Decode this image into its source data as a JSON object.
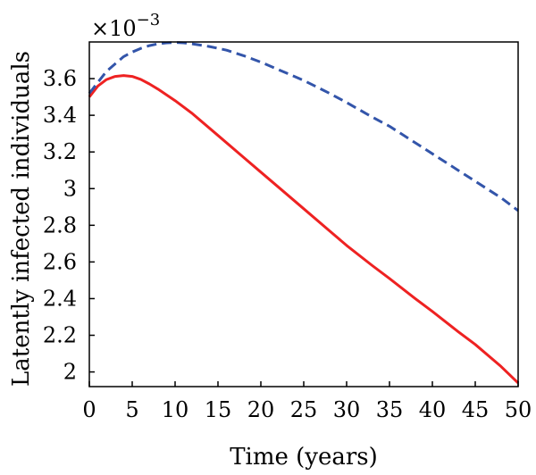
{
  "chart_data": {
    "type": "line",
    "xlabel": "Time (years)",
    "ylabel": "Latently infected individuals",
    "y_multiplier_label": "×10",
    "y_multiplier_exponent": "−3",
    "xlim": [
      0,
      50
    ],
    "ylim": [
      1.92,
      3.8
    ],
    "x_ticks": [
      0,
      5,
      10,
      15,
      20,
      25,
      30,
      35,
      40,
      45,
      50
    ],
    "x_tick_labels": [
      "0",
      "5",
      "10",
      "15",
      "20",
      "25",
      "30",
      "35",
      "40",
      "45",
      "50"
    ],
    "y_ticks": [
      2.0,
      2.2,
      2.4,
      2.6,
      2.8,
      3.0,
      3.2,
      3.4,
      3.6
    ],
    "y_tick_labels": [
      "2",
      "2.2",
      "2.4",
      "2.6",
      "2.8",
      "3",
      "3.2",
      "3.4",
      "3.6"
    ],
    "grid": false,
    "series": [
      {
        "color": "#ee2222",
        "dash": "solid",
        "x": [
          0,
          1,
          2,
          3,
          4,
          5,
          6,
          7,
          8,
          10,
          12,
          15,
          18,
          20,
          22,
          25,
          28,
          30,
          33,
          35,
          38,
          40,
          43,
          45,
          48,
          50
        ],
        "y": [
          3.5,
          3.56,
          3.595,
          3.612,
          3.617,
          3.612,
          3.596,
          3.571,
          3.543,
          3.48,
          3.41,
          3.29,
          3.17,
          3.09,
          3.01,
          2.89,
          2.77,
          2.69,
          2.58,
          2.51,
          2.4,
          2.33,
          2.22,
          2.15,
          2.03,
          1.94
        ]
      },
      {
        "color": "#3355aa",
        "dash": "dashed",
        "x": [
          0,
          1,
          2,
          3,
          4,
          5,
          6,
          7,
          8,
          9,
          10,
          11,
          12,
          14,
          16,
          18,
          20,
          22,
          25,
          28,
          30,
          33,
          35,
          38,
          40,
          43,
          45,
          48,
          50
        ],
        "y": [
          3.52,
          3.58,
          3.64,
          3.68,
          3.72,
          3.745,
          3.765,
          3.78,
          3.79,
          3.795,
          3.797,
          3.795,
          3.79,
          3.775,
          3.755,
          3.725,
          3.69,
          3.65,
          3.59,
          3.52,
          3.47,
          3.39,
          3.34,
          3.25,
          3.19,
          3.1,
          3.04,
          2.95,
          2.88
        ]
      }
    ]
  }
}
